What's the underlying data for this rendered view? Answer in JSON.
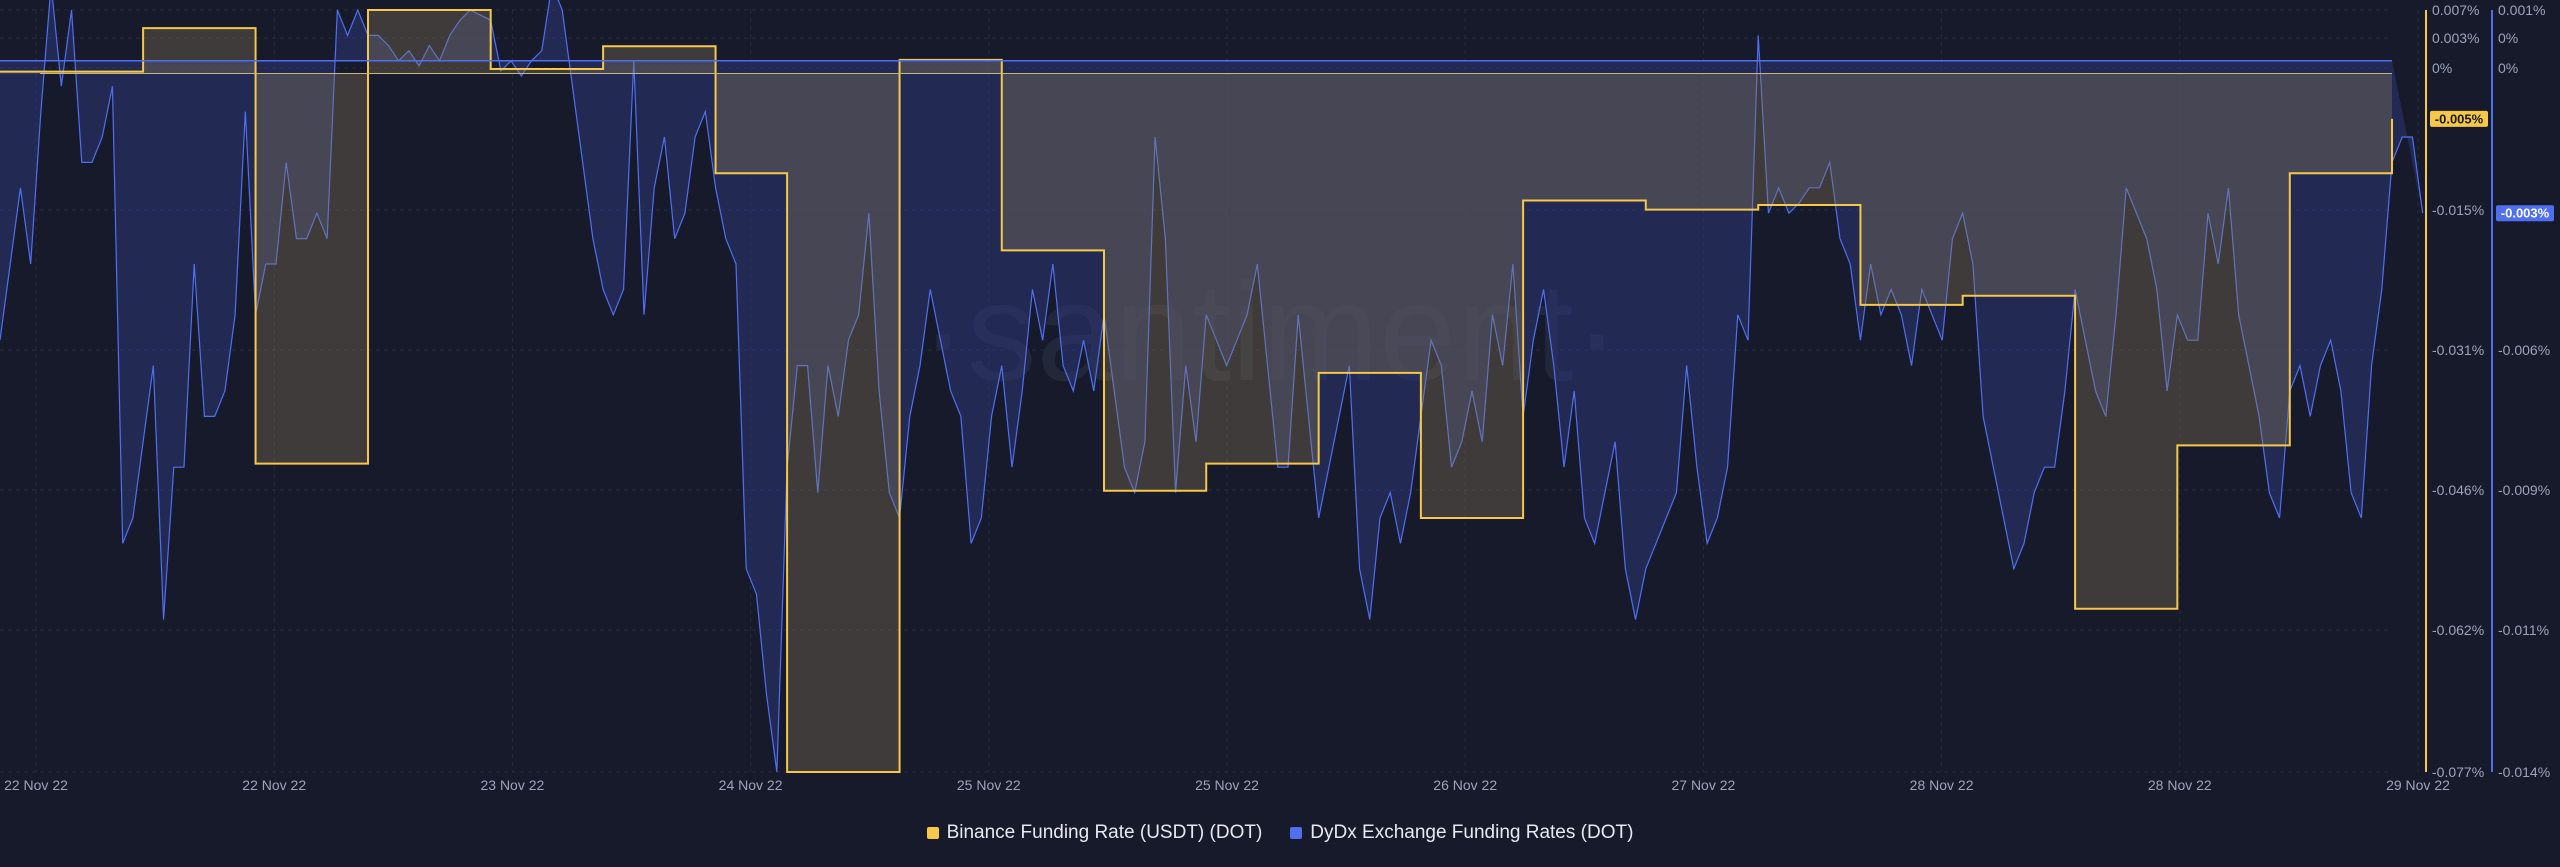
{
  "watermark": "·santiment·",
  "colors": {
    "background": "#171a2b",
    "binance": "#f5c84a",
    "dydx": "#4f6ff0",
    "grid": "#262a3d"
  },
  "chart_data": {
    "type": "line",
    "x_ticks": [
      "22 Nov 22",
      "22 Nov 22",
      "23 Nov 22",
      "24 Nov 22",
      "25 Nov 22",
      "25 Nov 22",
      "26 Nov 22",
      "27 Nov 22",
      "28 Nov 22",
      "28 Nov 22",
      "29 Nov 22"
    ],
    "y_left_ticks": [
      "0.007%",
      "0.003%",
      "0%",
      "-0.015%",
      "-0.031%",
      "-0.046%",
      "-0.062%",
      "-0.077%"
    ],
    "y_right_ticks": [
      "0.001%",
      "0%",
      "0%",
      "-0.003%",
      "-0.006%",
      "-0.009%",
      "-0.011%",
      "-0.014%"
    ],
    "y_left_range": [
      -0.077,
      0.007
    ],
    "y_right_range": [
      -0.014,
      0.001
    ],
    "current_badges": [
      {
        "series": "binance",
        "label": "-0.005%"
      },
      {
        "series": "dydx",
        "label": "-0.003%"
      }
    ],
    "series": [
      {
        "name": "Binance Funding Rate (USDT) (DOT)",
        "color": "#f5c84a",
        "axis": "left",
        "values": [
          0.0002,
          0.0002,
          0.0002,
          0.0002,
          0.0002,
          0.0002,
          0.0002,
          0.0002,
          0.0002,
          0.0002,
          0.0002,
          0.0002,
          0.0002,
          0.0002,
          0.005,
          0.005,
          0.005,
          0.005,
          0.005,
          0.005,
          0.005,
          0.005,
          0.005,
          0.005,
          0.005,
          -0.043,
          -0.043,
          -0.043,
          -0.043,
          -0.043,
          -0.043,
          -0.043,
          -0.043,
          -0.043,
          -0.043,
          -0.043,
          0.007,
          0.007,
          0.007,
          0.007,
          0.007,
          0.007,
          0.007,
          0.007,
          0.007,
          0.007,
          0.007,
          0.007,
          0.0005,
          0.0005,
          0.0005,
          0.0005,
          0.0005,
          0.0005,
          0.0005,
          0.0005,
          0.0005,
          0.0005,
          0.0005,
          0.003,
          0.003,
          0.003,
          0.003,
          0.003,
          0.003,
          0.003,
          0.003,
          0.003,
          0.003,
          0.003,
          -0.011,
          -0.011,
          -0.011,
          -0.011,
          -0.011,
          -0.011,
          -0.011,
          -0.077,
          -0.077,
          -0.077,
          -0.077,
          -0.077,
          -0.077,
          -0.077,
          -0.077,
          -0.077,
          -0.077,
          -0.077,
          0.0015,
          0.0015,
          0.0015,
          0.0015,
          0.0015,
          0.0015,
          0.0015,
          0.0015,
          0.0015,
          0.0015,
          -0.0195,
          -0.0195,
          -0.0195,
          -0.0195,
          -0.0195,
          -0.0195,
          -0.0195,
          -0.0195,
          -0.0195,
          -0.0195,
          -0.046,
          -0.046,
          -0.046,
          -0.046,
          -0.046,
          -0.046,
          -0.046,
          -0.046,
          -0.046,
          -0.046,
          -0.043,
          -0.043,
          -0.043,
          -0.043,
          -0.043,
          -0.043,
          -0.043,
          -0.043,
          -0.043,
          -0.043,
          -0.043,
          -0.033,
          -0.033,
          -0.033,
          -0.033,
          -0.033,
          -0.033,
          -0.033,
          -0.033,
          -0.033,
          -0.033,
          -0.049,
          -0.049,
          -0.049,
          -0.049,
          -0.049,
          -0.049,
          -0.049,
          -0.049,
          -0.049,
          -0.049,
          -0.014,
          -0.014,
          -0.014,
          -0.014,
          -0.014,
          -0.014,
          -0.014,
          -0.014,
          -0.014,
          -0.014,
          -0.014,
          -0.014,
          -0.015,
          -0.015,
          -0.015,
          -0.015,
          -0.015,
          -0.015,
          -0.015,
          -0.015,
          -0.015,
          -0.015,
          -0.015,
          -0.0145,
          -0.0145,
          -0.0145,
          -0.0145,
          -0.0145,
          -0.0145,
          -0.0145,
          -0.0145,
          -0.0145,
          -0.0145,
          -0.0255,
          -0.0255,
          -0.0255,
          -0.0255,
          -0.0255,
          -0.0255,
          -0.0255,
          -0.0255,
          -0.0255,
          -0.0255,
          -0.0245,
          -0.0245,
          -0.0245,
          -0.0245,
          -0.0245,
          -0.0245,
          -0.0245,
          -0.0245,
          -0.0245,
          -0.0245,
          -0.0245,
          -0.059,
          -0.059,
          -0.059,
          -0.059,
          -0.059,
          -0.059,
          -0.059,
          -0.059,
          -0.059,
          -0.059,
          -0.041,
          -0.041,
          -0.041,
          -0.041,
          -0.041,
          -0.041,
          -0.041,
          -0.041,
          -0.041,
          -0.041,
          -0.041,
          -0.011,
          -0.011,
          -0.011,
          -0.011,
          -0.011,
          -0.011,
          -0.011,
          -0.011,
          -0.011,
          -0.011,
          -0.005
        ]
      },
      {
        "name": "DyDx Exchange Funding Rates (DOT)",
        "color": "#4f6ff0",
        "axis": "right",
        "values": [
          -0.0055,
          -0.004,
          -0.0025,
          -0.004,
          -0.001,
          0.0015,
          -0.0005,
          0.001,
          -0.002,
          -0.002,
          -0.0015,
          -0.0005,
          -0.0095,
          -0.009,
          -0.0075,
          -0.006,
          -0.011,
          -0.008,
          -0.008,
          -0.004,
          -0.007,
          -0.007,
          -0.0065,
          -0.005,
          -0.001,
          -0.005,
          -0.004,
          -0.004,
          -0.002,
          -0.0035,
          -0.0035,
          -0.003,
          -0.0035,
          0.001,
          0.0005,
          0.001,
          0.0005,
          0.0005,
          0.0003,
          0.0,
          0.0002,
          -0.0001,
          0.0003,
          0.0,
          0.0005,
          0.0008,
          0.001,
          0.0009,
          0.0008,
          -0.0002,
          0.0,
          -0.0003,
          0.0,
          0.0002,
          0.0015,
          0.001,
          -0.0005,
          -0.002,
          -0.0035,
          -0.0045,
          -0.005,
          -0.0045,
          0.0,
          -0.005,
          -0.0025,
          -0.0015,
          -0.0035,
          -0.003,
          -0.0015,
          -0.001,
          -0.0025,
          -0.0035,
          -0.004,
          -0.01,
          -0.0105,
          -0.0125,
          -0.014,
          -0.008,
          -0.006,
          -0.006,
          -0.0085,
          -0.006,
          -0.007,
          -0.0055,
          -0.005,
          -0.003,
          -0.0065,
          -0.0085,
          -0.009,
          -0.007,
          -0.006,
          -0.0045,
          -0.0055,
          -0.0065,
          -0.007,
          -0.0095,
          -0.009,
          -0.007,
          -0.006,
          -0.008,
          -0.0065,
          -0.0045,
          -0.0055,
          -0.004,
          -0.006,
          -0.0065,
          -0.0055,
          -0.0065,
          -0.005,
          -0.0065,
          -0.008,
          -0.0085,
          -0.0075,
          -0.0015,
          -0.0035,
          -0.0085,
          -0.006,
          -0.0075,
          -0.005,
          -0.0055,
          -0.006,
          -0.0055,
          -0.005,
          -0.004,
          -0.006,
          -0.008,
          -0.008,
          -0.005,
          -0.007,
          -0.009,
          -0.008,
          -0.007,
          -0.006,
          -0.01,
          -0.011,
          -0.009,
          -0.0085,
          -0.0095,
          -0.0085,
          -0.007,
          -0.0055,
          -0.006,
          -0.008,
          -0.0075,
          -0.0065,
          -0.0075,
          -0.005,
          -0.006,
          -0.004,
          -0.007,
          -0.0055,
          -0.0045,
          -0.006,
          -0.008,
          -0.0065,
          -0.009,
          -0.0095,
          -0.0085,
          -0.0075,
          -0.01,
          -0.011,
          -0.01,
          -0.0095,
          -0.009,
          -0.0085,
          -0.006,
          -0.008,
          -0.0095,
          -0.009,
          -0.008,
          -0.005,
          -0.0055,
          0.0005,
          -0.003,
          -0.0025,
          -0.003,
          -0.0028,
          -0.0025,
          -0.0025,
          -0.002,
          -0.0035,
          -0.004,
          -0.0055,
          -0.004,
          -0.005,
          -0.0045,
          -0.005,
          -0.006,
          -0.0045,
          -0.005,
          -0.0055,
          -0.0035,
          -0.003,
          -0.004,
          -0.007,
          -0.008,
          -0.009,
          -0.01,
          -0.0095,
          -0.0085,
          -0.008,
          -0.008,
          -0.0065,
          -0.0045,
          -0.0055,
          -0.0065,
          -0.007,
          -0.005,
          -0.0025,
          -0.003,
          -0.0035,
          -0.0045,
          -0.0065,
          -0.005,
          -0.0055,
          -0.0055,
          -0.003,
          -0.004,
          -0.0025,
          -0.005,
          -0.006,
          -0.007,
          -0.0085,
          -0.009,
          -0.0065,
          -0.006,
          -0.007,
          -0.006,
          -0.0055,
          -0.0065,
          -0.0085,
          -0.009,
          -0.006,
          -0.0045,
          -0.002,
          -0.0015,
          -0.0015,
          -0.003
        ]
      }
    ],
    "legend_position": "bottom-center",
    "grid": true
  }
}
